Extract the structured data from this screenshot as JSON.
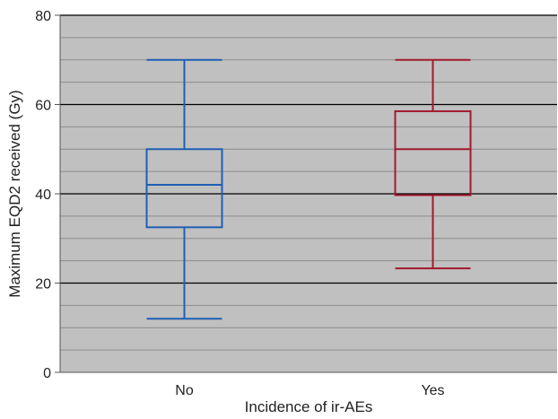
{
  "chart_data": {
    "type": "boxplot",
    "title": "",
    "xlabel": "Incidence of ir-AEs",
    "ylabel": "Maximum EQD2 received (Gy)",
    "ylim": [
      0,
      80
    ],
    "yticks": [
      0,
      20,
      40,
      60,
      80
    ],
    "minor_gridline_step": 5,
    "grid": true,
    "plot_background": "#c0c0c0",
    "major_gridline_color": "#000000",
    "minor_gridline_color": "#8c8c8c",
    "categories": [
      "No",
      "Yes"
    ],
    "boxes": [
      {
        "category": "No",
        "min": 12,
        "q1": 32.5,
        "median": 42,
        "q3": 50,
        "max": 70,
        "color": "#1f5fb4"
      },
      {
        "category": "Yes",
        "min": 23.3,
        "q1": 39.7,
        "median": 50,
        "q3": 58.5,
        "max": 70,
        "color": "#a3192f"
      }
    ]
  }
}
